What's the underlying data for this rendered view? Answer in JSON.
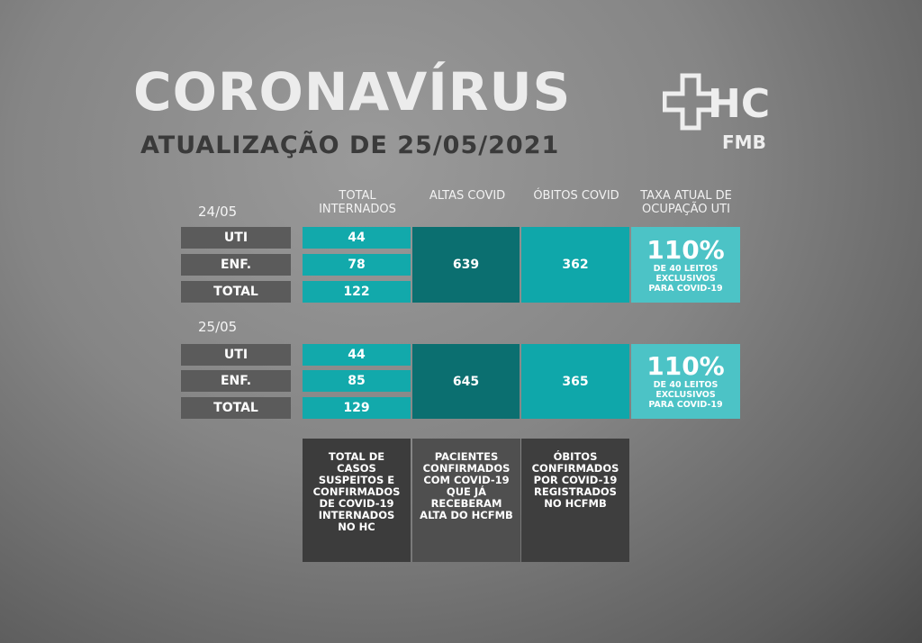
{
  "title": "CORONAVÍRUS",
  "subtitle": "ATUALIZAÇÃO DE 25/05/2021",
  "logo": {
    "text_top": "HC",
    "text_bottom": "FMB"
  },
  "headers": [
    "TOTAL INTERNADOS",
    "ALTAS COVID",
    "ÓBITOS COVID",
    "TAXA ATUAL DE OCUPAÇÃO UTI"
  ],
  "blocks": [
    {
      "date": "24/05",
      "rows": [
        {
          "label": "UTI",
          "value": "44"
        },
        {
          "label": "ENF.",
          "value": "78"
        },
        {
          "label": "TOTAL",
          "value": "122"
        }
      ],
      "altas": "639",
      "obitos": "362",
      "taxa": "110%",
      "taxa_note": "DE 40 LEITOS EXCLUSIVOS PARA COVID-19"
    },
    {
      "date": "25/05",
      "rows": [
        {
          "label": "UTI",
          "value": "44"
        },
        {
          "label": "ENF.",
          "value": "85"
        },
        {
          "label": "TOTAL",
          "value": "129"
        }
      ],
      "altas": "645",
      "obitos": "365",
      "taxa": "110%",
      "taxa_note": "DE 40 LEITOS EXCLUSIVOS PARA COVID-19"
    }
  ],
  "footnotes": [
    "TOTAL DE CASOS SUSPEITOS E CONFIRMADOS DE COVID-19 INTERNADOS NO HC",
    "PACIENTES CONFIRMADOS COM COVID-19 QUE JÁ RECEBERAM ALTA DO HCFMB",
    "ÓBITOS CONFIRMADOS POR COVID-19 REGISTRADOS NO HCFMB"
  ],
  "colors": {
    "teal": "#12a9ab",
    "dark_teal": "#0b6f70",
    "light_teal": "#4cc3c6",
    "label_grey": "#5b5b5b"
  }
}
